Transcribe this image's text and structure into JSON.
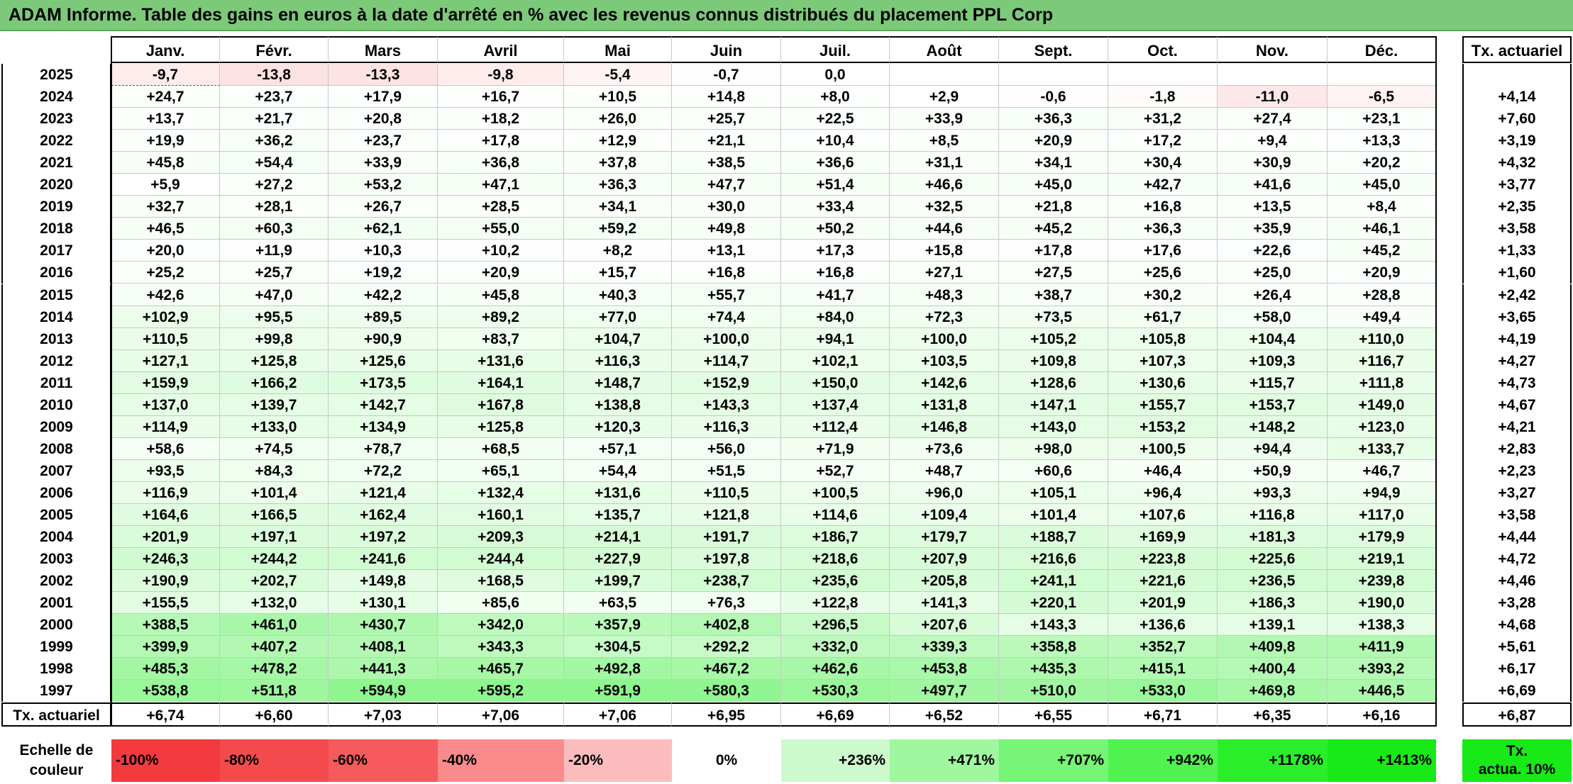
{
  "title": "ADAM Informe. Table des gains en euros à la date d'arrêté en % avec les revenus connus distribués du placement PPL Corp",
  "chart_data": {
    "type": "heatmap",
    "months": [
      "Janv.",
      "Févr.",
      "Mars",
      "Avril",
      "Mai",
      "Juin",
      "Juil.",
      "Août",
      "Sept.",
      "Oct.",
      "Nov.",
      "Déc."
    ],
    "rate_header": "Tx. actuariel",
    "rows": [
      {
        "year": "2025",
        "values": [
          "-9,7",
          "-13,8",
          "-13,3",
          "-9,8",
          "-5,4",
          "-0,7",
          "0,0",
          "",
          "",
          "",
          "",
          ""
        ],
        "rate": ""
      },
      {
        "year": "2024",
        "values": [
          "+24,7",
          "+23,7",
          "+17,9",
          "+16,7",
          "+10,5",
          "+14,8",
          "+8,0",
          "+2,9",
          "-0,6",
          "-1,8",
          "-11,0",
          "-6,5"
        ],
        "rate": "+4,14"
      },
      {
        "year": "2023",
        "values": [
          "+13,7",
          "+21,7",
          "+20,8",
          "+18,2",
          "+26,0",
          "+25,7",
          "+22,5",
          "+33,9",
          "+36,3",
          "+31,2",
          "+27,4",
          "+23,1"
        ],
        "rate": "+7,60"
      },
      {
        "year": "2022",
        "values": [
          "+19,9",
          "+36,2",
          "+23,7",
          "+17,8",
          "+12,9",
          "+21,1",
          "+10,4",
          "+8,5",
          "+20,9",
          "+17,2",
          "+9,4",
          "+13,3"
        ],
        "rate": "+3,19"
      },
      {
        "year": "2021",
        "values": [
          "+45,8",
          "+54,4",
          "+33,9",
          "+36,8",
          "+37,8",
          "+38,5",
          "+36,6",
          "+31,1",
          "+34,1",
          "+30,4",
          "+30,9",
          "+20,2"
        ],
        "rate": "+4,32"
      },
      {
        "year": "2020",
        "values": [
          "+5,9",
          "+27,2",
          "+53,2",
          "+47,1",
          "+36,3",
          "+47,7",
          "+51,4",
          "+46,6",
          "+45,0",
          "+42,7",
          "+41,6",
          "+45,0"
        ],
        "rate": "+3,77"
      },
      {
        "year": "2019",
        "values": [
          "+32,7",
          "+28,1",
          "+26,7",
          "+28,5",
          "+34,1",
          "+30,0",
          "+33,4",
          "+32,5",
          "+21,8",
          "+16,8",
          "+13,5",
          "+8,4"
        ],
        "rate": "+2,35"
      },
      {
        "year": "2018",
        "values": [
          "+46,5",
          "+60,3",
          "+62,1",
          "+55,0",
          "+59,2",
          "+49,8",
          "+50,2",
          "+44,6",
          "+45,2",
          "+36,3",
          "+35,9",
          "+46,1"
        ],
        "rate": "+3,58"
      },
      {
        "year": "2017",
        "values": [
          "+20,0",
          "+11,9",
          "+10,3",
          "+10,2",
          "+8,2",
          "+13,1",
          "+17,3",
          "+15,8",
          "+17,8",
          "+17,6",
          "+22,6",
          "+45,2"
        ],
        "rate": "+1,33"
      },
      {
        "year": "2016",
        "values": [
          "+25,2",
          "+25,7",
          "+19,2",
          "+20,9",
          "+15,7",
          "+16,8",
          "+16,8",
          "+27,1",
          "+27,5",
          "+25,6",
          "+25,0",
          "+20,9"
        ],
        "rate": "+1,60"
      },
      {
        "year": "2015",
        "values": [
          "+42,6",
          "+47,0",
          "+42,2",
          "+45,8",
          "+40,3",
          "+55,7",
          "+41,7",
          "+48,3",
          "+38,7",
          "+30,2",
          "+26,4",
          "+28,8"
        ],
        "rate": "+2,42"
      },
      {
        "year": "2014",
        "values": [
          "+102,9",
          "+95,5",
          "+89,5",
          "+89,2",
          "+77,0",
          "+74,4",
          "+84,0",
          "+72,3",
          "+73,5",
          "+61,7",
          "+58,0",
          "+49,4"
        ],
        "rate": "+3,65"
      },
      {
        "year": "2013",
        "values": [
          "+110,5",
          "+99,8",
          "+90,9",
          "+83,7",
          "+104,7",
          "+100,0",
          "+94,1",
          "+100,0",
          "+105,2",
          "+105,8",
          "+104,4",
          "+110,0"
        ],
        "rate": "+4,19"
      },
      {
        "year": "2012",
        "values": [
          "+127,1",
          "+125,8",
          "+125,6",
          "+131,6",
          "+116,3",
          "+114,7",
          "+102,1",
          "+103,5",
          "+109,8",
          "+107,3",
          "+109,3",
          "+116,7"
        ],
        "rate": "+4,27"
      },
      {
        "year": "2011",
        "values": [
          "+159,9",
          "+166,2",
          "+173,5",
          "+164,1",
          "+148,7",
          "+152,9",
          "+150,0",
          "+142,6",
          "+128,6",
          "+130,6",
          "+115,7",
          "+111,8"
        ],
        "rate": "+4,73"
      },
      {
        "year": "2010",
        "values": [
          "+137,0",
          "+139,7",
          "+142,7",
          "+167,8",
          "+138,8",
          "+143,3",
          "+137,4",
          "+131,8",
          "+147,1",
          "+155,7",
          "+153,7",
          "+149,0"
        ],
        "rate": "+4,67"
      },
      {
        "year": "2009",
        "values": [
          "+114,9",
          "+133,0",
          "+134,9",
          "+125,8",
          "+120,3",
          "+116,3",
          "+112,4",
          "+146,8",
          "+143,0",
          "+153,2",
          "+148,2",
          "+123,0"
        ],
        "rate": "+4,21"
      },
      {
        "year": "2008",
        "values": [
          "+58,6",
          "+74,5",
          "+78,7",
          "+68,5",
          "+57,1",
          "+56,0",
          "+71,9",
          "+73,6",
          "+98,0",
          "+100,5",
          "+94,4",
          "+133,7"
        ],
        "rate": "+2,83"
      },
      {
        "year": "2007",
        "values": [
          "+93,5",
          "+84,3",
          "+72,2",
          "+65,1",
          "+54,4",
          "+51,5",
          "+52,7",
          "+48,7",
          "+60,6",
          "+46,4",
          "+50,9",
          "+46,7"
        ],
        "rate": "+2,23"
      },
      {
        "year": "2006",
        "values": [
          "+116,9",
          "+101,4",
          "+121,4",
          "+132,4",
          "+131,6",
          "+110,5",
          "+100,5",
          "+96,0",
          "+105,1",
          "+96,4",
          "+93,3",
          "+94,9"
        ],
        "rate": "+3,27"
      },
      {
        "year": "2005",
        "values": [
          "+164,6",
          "+166,5",
          "+162,4",
          "+160,1",
          "+135,7",
          "+121,8",
          "+114,6",
          "+109,4",
          "+101,4",
          "+107,6",
          "+116,8",
          "+117,0"
        ],
        "rate": "+3,58"
      },
      {
        "year": "2004",
        "values": [
          "+201,9",
          "+197,1",
          "+197,2",
          "+209,3",
          "+214,1",
          "+191,7",
          "+186,7",
          "+179,7",
          "+188,7",
          "+169,9",
          "+181,3",
          "+179,9"
        ],
        "rate": "+4,44"
      },
      {
        "year": "2003",
        "values": [
          "+246,3",
          "+244,2",
          "+241,6",
          "+244,4",
          "+227,9",
          "+197,8",
          "+218,6",
          "+207,9",
          "+216,6",
          "+223,8",
          "+225,6",
          "+219,1"
        ],
        "rate": "+4,72"
      },
      {
        "year": "2002",
        "values": [
          "+190,9",
          "+202,7",
          "+149,8",
          "+168,5",
          "+199,7",
          "+238,7",
          "+235,6",
          "+205,8",
          "+241,1",
          "+221,6",
          "+236,5",
          "+239,8"
        ],
        "rate": "+4,46"
      },
      {
        "year": "2001",
        "values": [
          "+155,5",
          "+132,0",
          "+130,1",
          "+85,6",
          "+63,5",
          "+76,3",
          "+122,8",
          "+141,3",
          "+220,1",
          "+201,9",
          "+186,3",
          "+190,0"
        ],
        "rate": "+3,28"
      },
      {
        "year": "2000",
        "values": [
          "+388,5",
          "+461,0",
          "+430,7",
          "+342,0",
          "+357,9",
          "+402,8",
          "+296,5",
          "+207,6",
          "+143,3",
          "+136,6",
          "+139,1",
          "+138,3"
        ],
        "rate": "+4,68"
      },
      {
        "year": "1999",
        "values": [
          "+399,9",
          "+407,2",
          "+408,1",
          "+343,3",
          "+304,5",
          "+292,2",
          "+332,0",
          "+339,3",
          "+358,8",
          "+352,7",
          "+409,8",
          "+411,9"
        ],
        "rate": "+5,61"
      },
      {
        "year": "1998",
        "values": [
          "+485,3",
          "+478,2",
          "+441,3",
          "+465,7",
          "+492,8",
          "+467,2",
          "+462,6",
          "+453,8",
          "+435,3",
          "+415,1",
          "+400,4",
          "+393,2"
        ],
        "rate": "+6,17"
      },
      {
        "year": "1997",
        "values": [
          "+538,8",
          "+511,8",
          "+594,9",
          "+595,2",
          "+591,9",
          "+580,3",
          "+530,3",
          "+497,7",
          "+510,0",
          "+533,0",
          "+469,8",
          "+446,5"
        ],
        "rate": "+6,69"
      }
    ],
    "summary": {
      "label": "Tx. actuariel",
      "values": [
        "+6,74",
        "+6,60",
        "+7,03",
        "+7,06",
        "+7,06",
        "+6,95",
        "+6,69",
        "+6,52",
        "+6,55",
        "+6,71",
        "+6,35",
        "+6,16"
      ],
      "rate": "+6,87"
    },
    "scale": {
      "label_line1": "Echelle de",
      "label_line2": "couleur",
      "items": [
        {
          "label": "-100%",
          "color": "#f23a3f"
        },
        {
          "label": "-80%",
          "color": "#f44a4e"
        },
        {
          "label": "-60%",
          "color": "#f65a5c"
        },
        {
          "label": "-40%",
          "color": "#fa8a8b"
        },
        {
          "label": "-20%",
          "color": "#fcbcbd"
        },
        {
          "label": "0%",
          "color": "#ffffff"
        },
        {
          "label": "+236%",
          "color": "#ccfacc"
        },
        {
          "label": "+471%",
          "color": "#9ff79f"
        },
        {
          "label": "+707%",
          "color": "#76f576"
        },
        {
          "label": "+942%",
          "color": "#50f250"
        },
        {
          "label": "+1178%",
          "color": "#2bee2b"
        },
        {
          "label": "+1413%",
          "color": "#17ea17"
        }
      ],
      "rate_label_line1": "Tx.",
      "rate_label_line2": "actua. 10%",
      "rate_color": "#17ea17"
    },
    "colors": {
      "title_bg": "#7dc97a",
      "positive_max": "#17ea17",
      "negative_max": "#f23a3f"
    }
  }
}
